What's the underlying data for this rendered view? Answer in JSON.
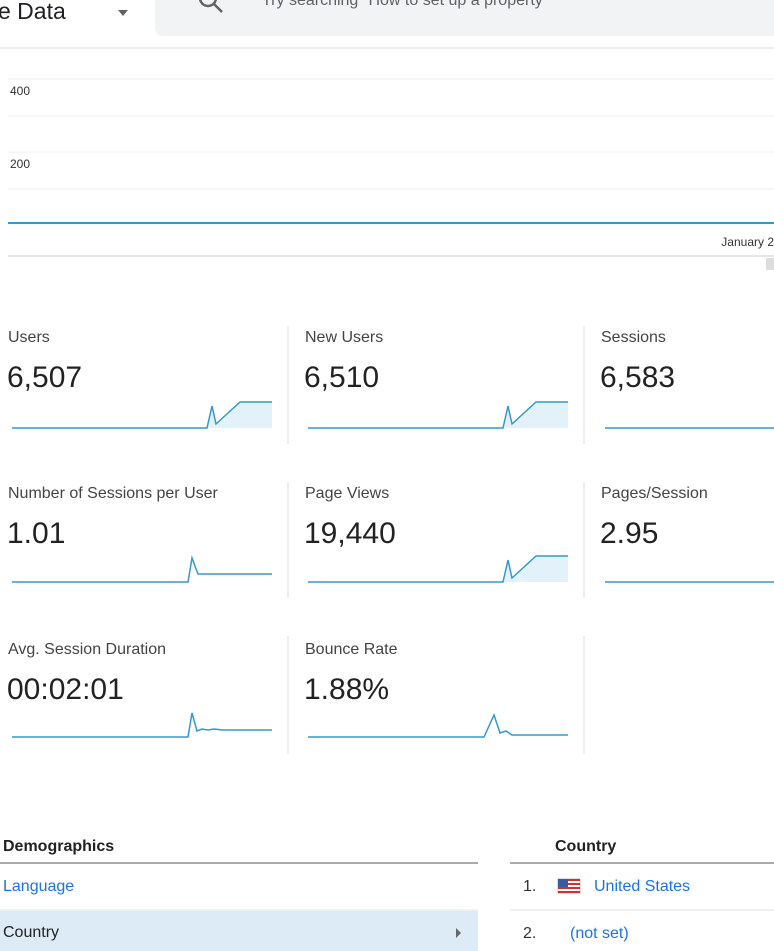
{
  "header": {
    "title": "e Data",
    "search_placeholder": "Try searching \"How to set up a property\""
  },
  "overview_chart": {
    "yticks": [
      400,
      200
    ],
    "x_label": "January 2"
  },
  "metrics": [
    {
      "label": "Users",
      "value": "6,507"
    },
    {
      "label": "New Users",
      "value": "6,510"
    },
    {
      "label": "Sessions",
      "value": "6,583"
    },
    {
      "label": "Number of Sessions per User",
      "value": "1.01"
    },
    {
      "label": "Page Views",
      "value": "19,440"
    },
    {
      "label": "Pages/Session",
      "value": "2.95"
    },
    {
      "label": "Avg. Session Duration",
      "value": "00:02:01"
    },
    {
      "label": "Bounce Rate",
      "value": "1.88%"
    }
  ],
  "demographics": {
    "title": "Demographics",
    "items": [
      "Language",
      "Country"
    ]
  },
  "country_table": {
    "title": "Country",
    "rows": [
      {
        "rank": "1.",
        "name": "United States"
      },
      {
        "rank": "2.",
        "name": "(not set)"
      }
    ]
  }
}
